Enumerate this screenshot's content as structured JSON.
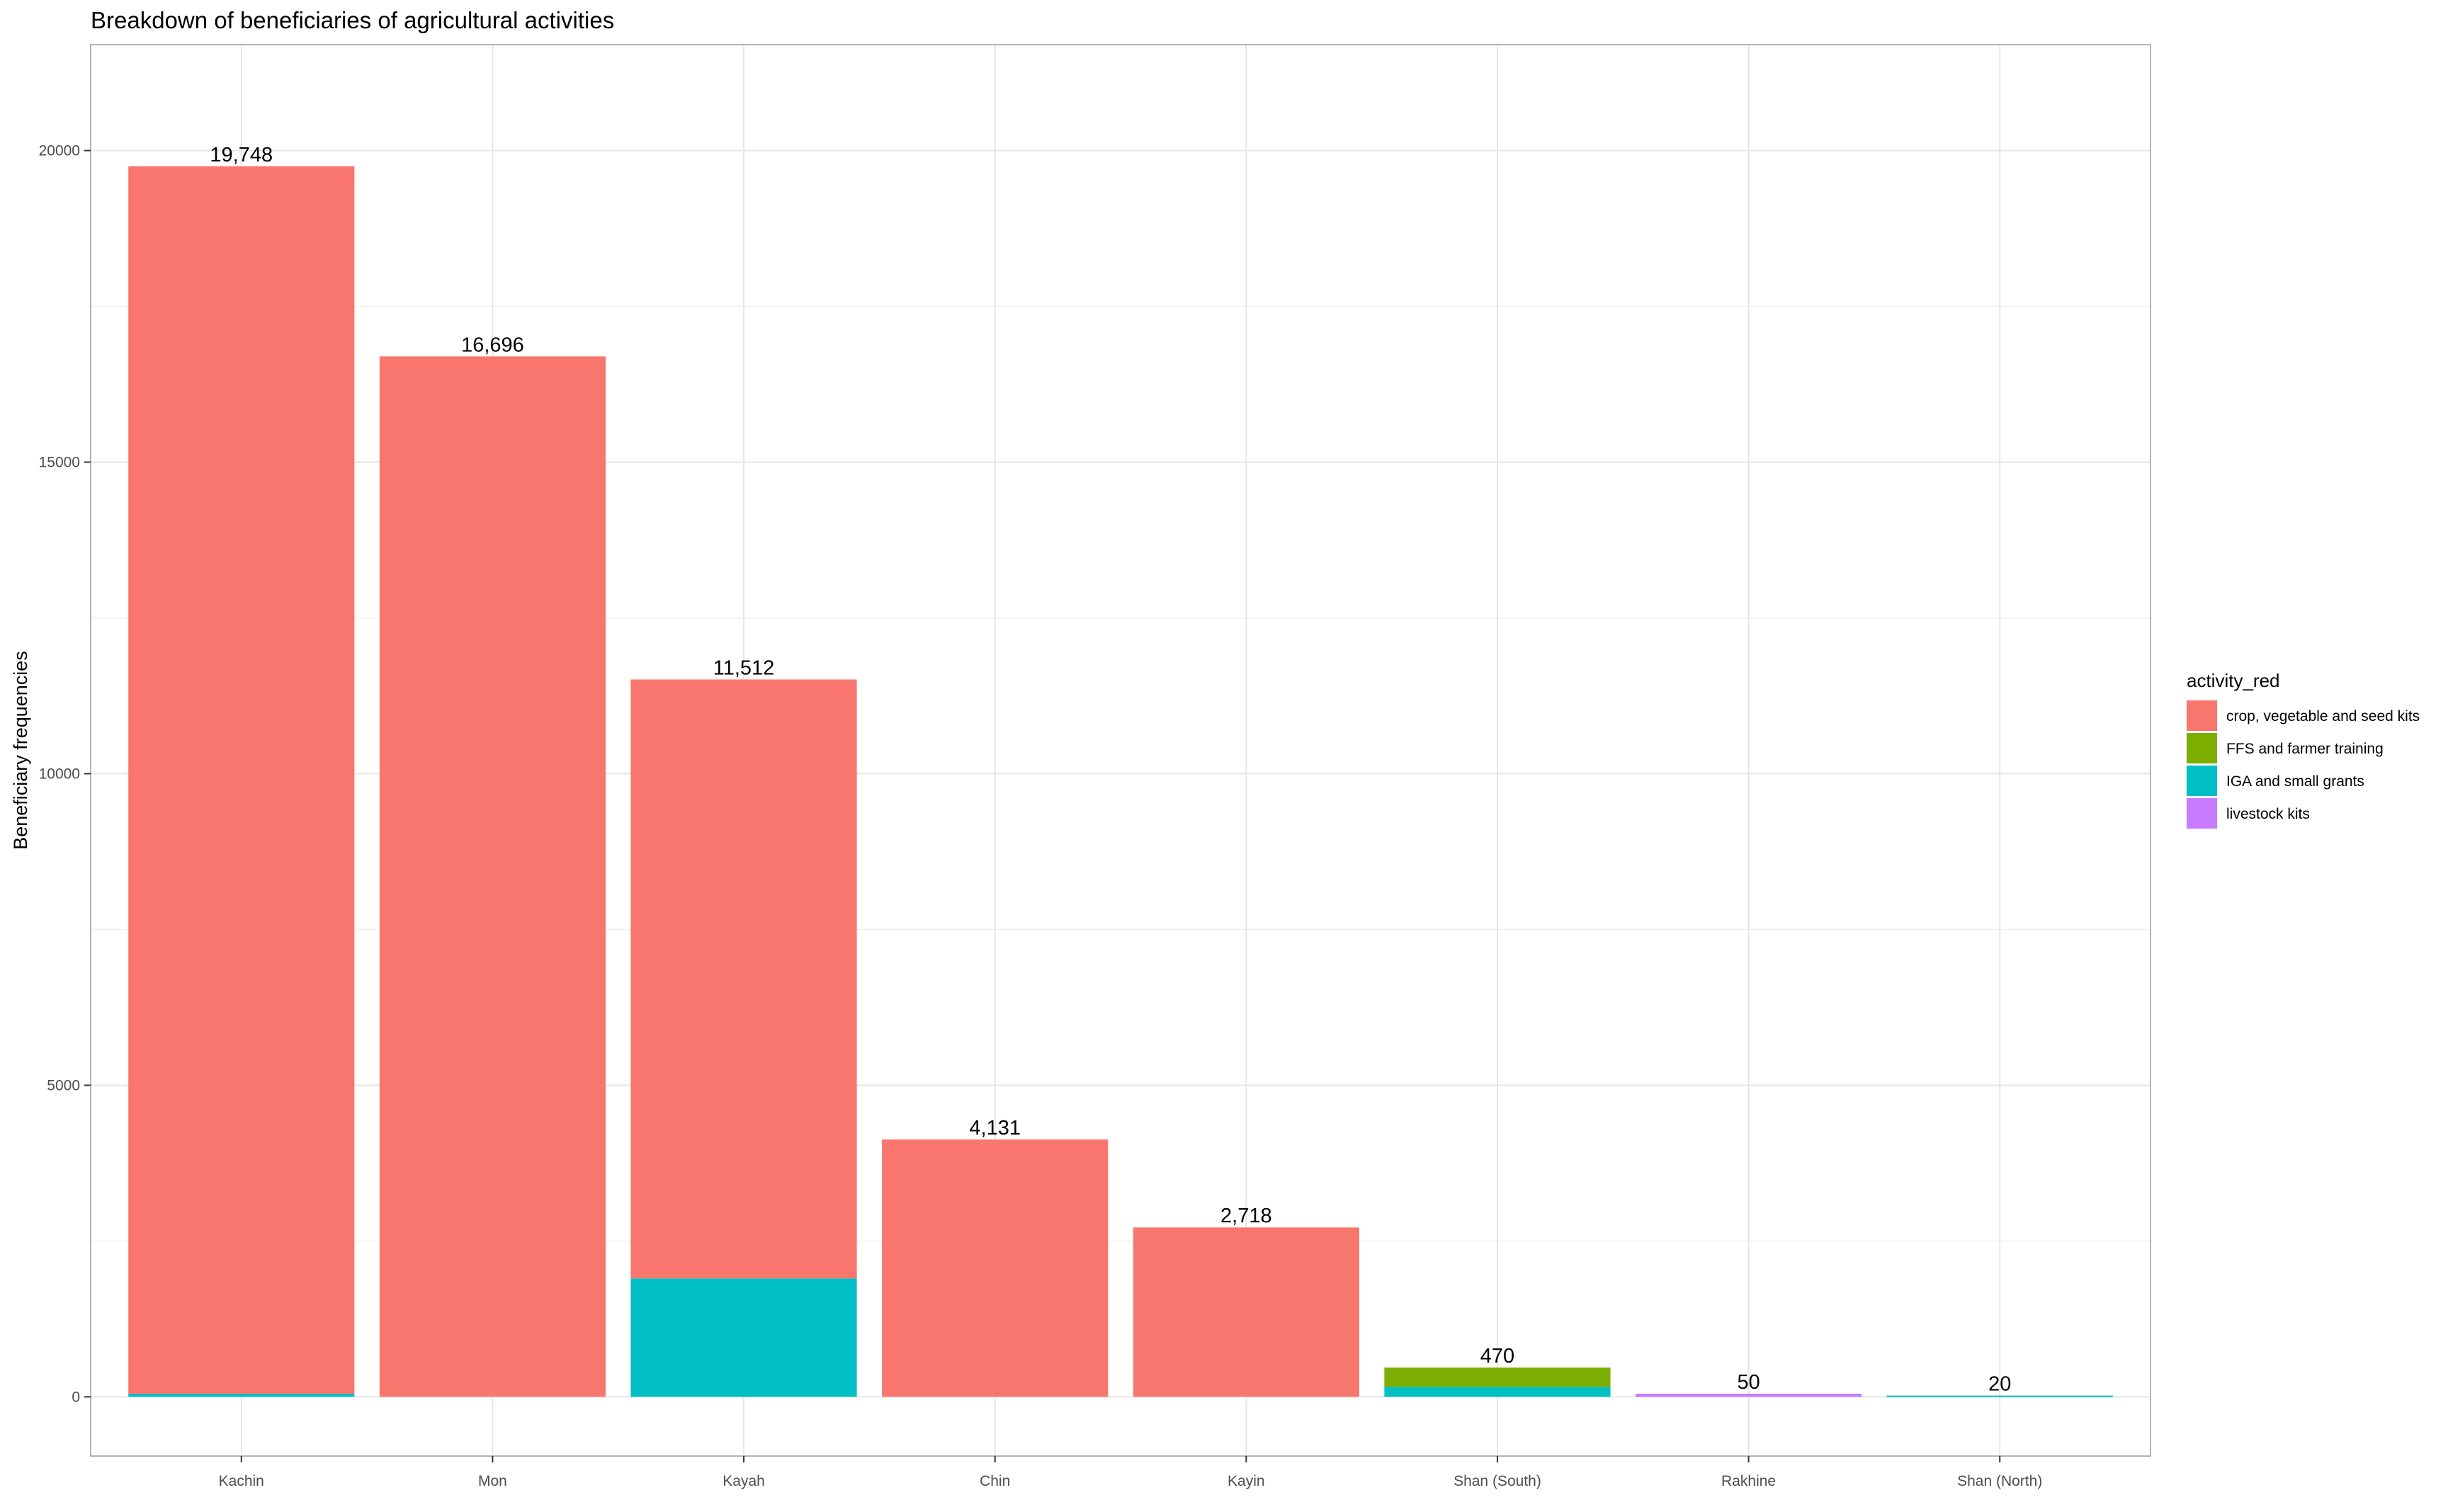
{
  "chart_data": {
    "type": "bar",
    "stacked": true,
    "title": "Breakdown of beneficiaries of agricultural activities",
    "xlabel": "",
    "ylabel": "Beneficiary frequencies",
    "ylim": [
      -950,
      21700
    ],
    "yticks": [
      0,
      5000,
      10000,
      15000,
      20000
    ],
    "grid": true,
    "legend_title": "activity_red",
    "legend_position": "right",
    "categories": [
      "Kachin",
      "Mon",
      "Kayah",
      "Chin",
      "Kayin",
      "Shan (South)",
      "Rakhine",
      "Shan (North)"
    ],
    "totals": [
      19748,
      16696,
      11512,
      4131,
      2718,
      470,
      50,
      20
    ],
    "total_labels": [
      "19,748",
      "16,696",
      "11,512",
      "4,131",
      "2,718",
      "470",
      "50",
      "20"
    ],
    "series": [
      {
        "name": "crop, vegetable and seed kits",
        "color": "#F8766D",
        "values": [
          19698,
          16696,
          9612,
          4131,
          2718,
          0,
          0,
          0
        ]
      },
      {
        "name": "FFS and farmer training",
        "color": "#7CAE00",
        "values": [
          0,
          0,
          0,
          0,
          0,
          310,
          0,
          0
        ]
      },
      {
        "name": "IGA and small grants",
        "color": "#00BFC4",
        "values": [
          50,
          0,
          1900,
          0,
          0,
          160,
          0,
          20
        ]
      },
      {
        "name": "livestock kits",
        "color": "#C77CFF",
        "values": [
          0,
          0,
          0,
          0,
          0,
          0,
          50,
          0
        ]
      }
    ]
  }
}
